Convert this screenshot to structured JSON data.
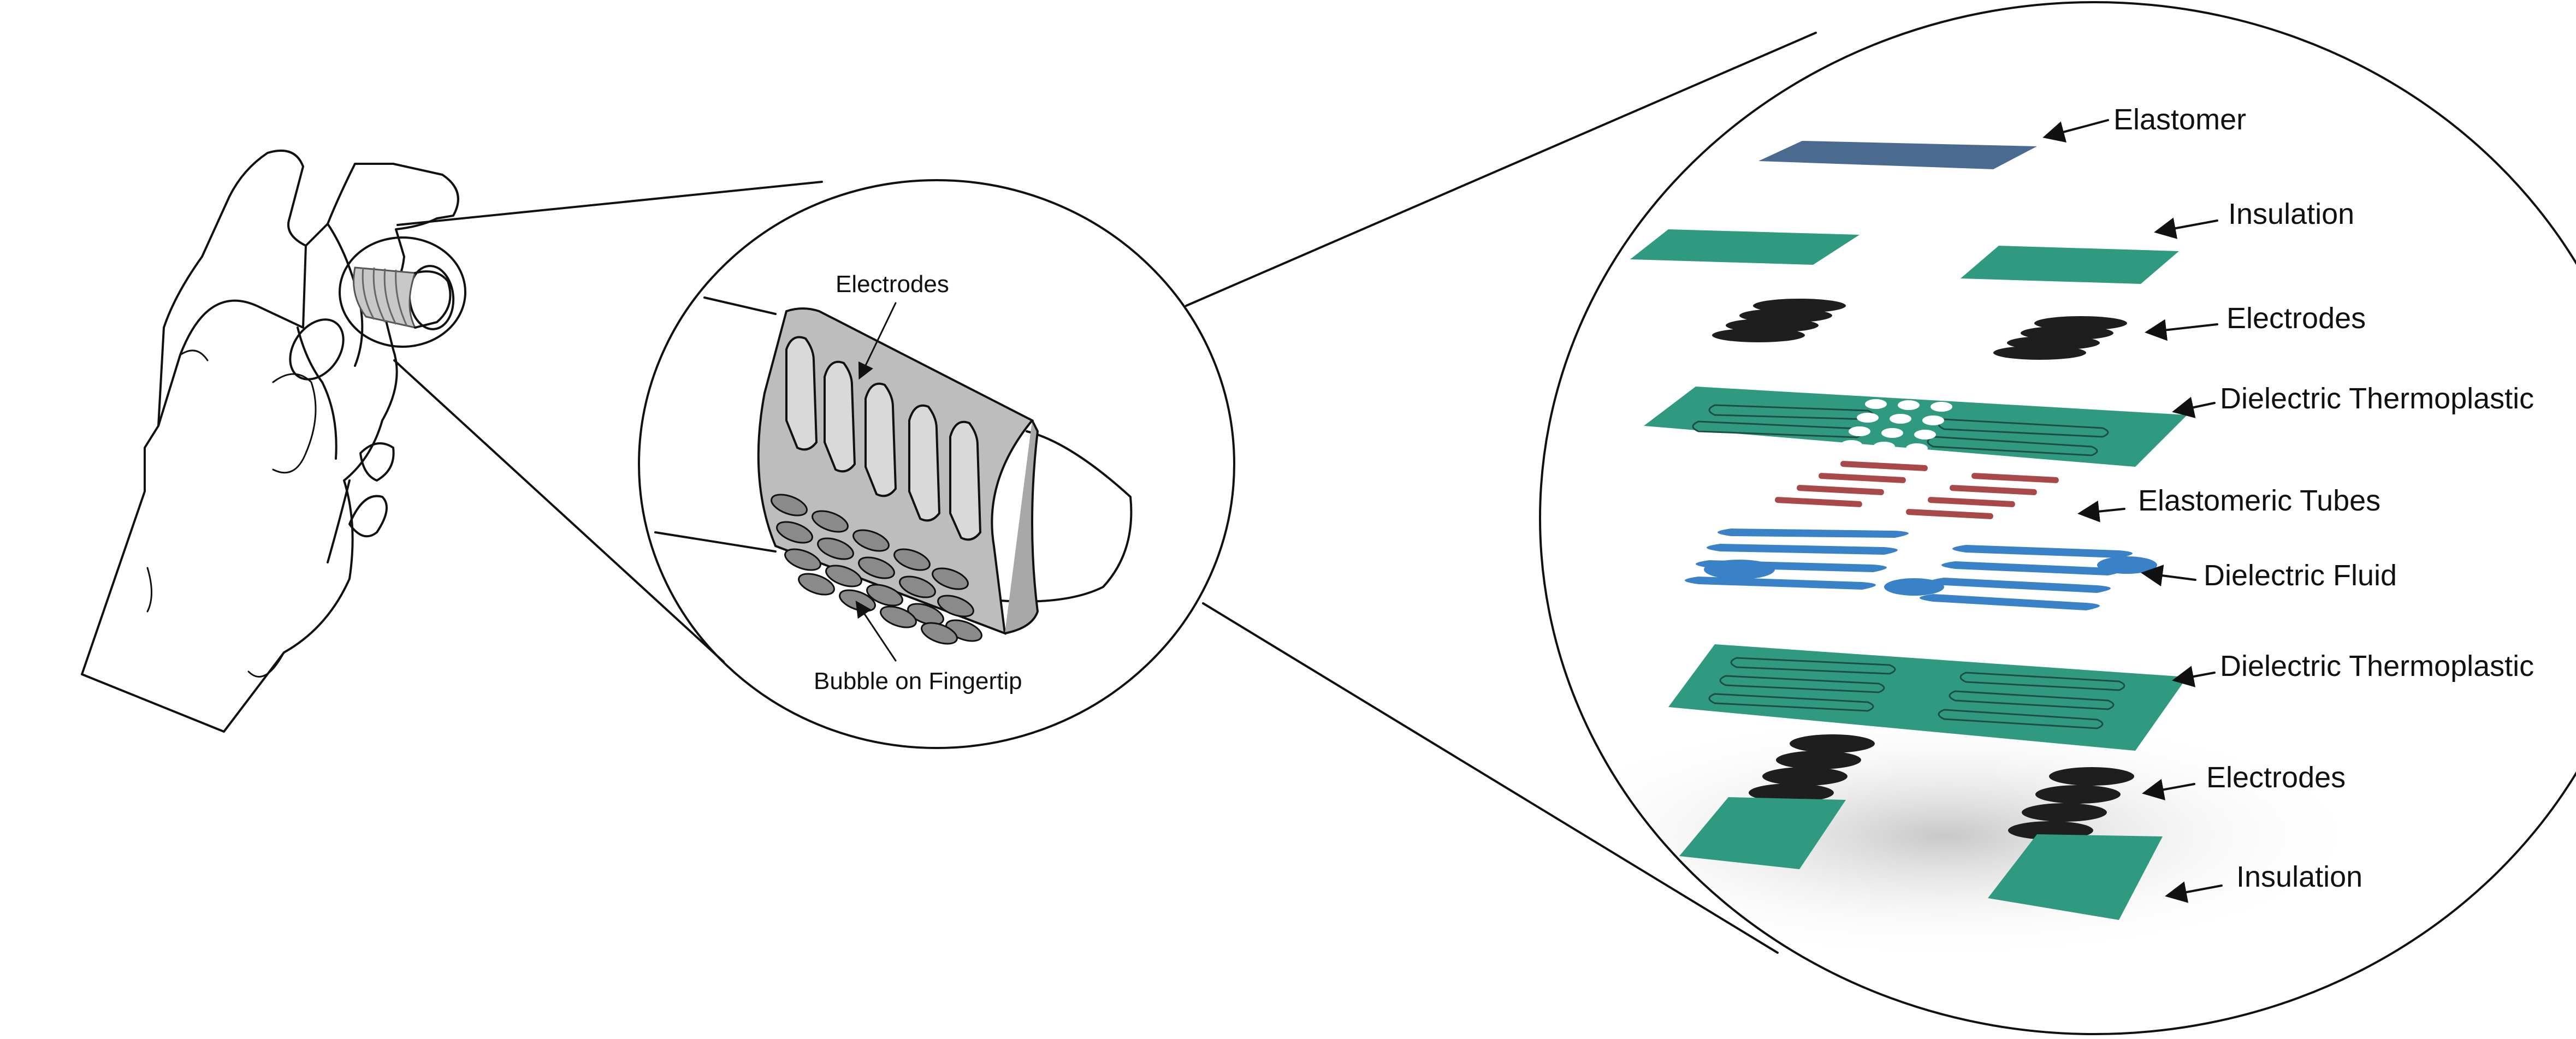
{
  "mid_inset": {
    "labels": {
      "electrodes": "Electrodes",
      "bubble": "Bubble on Fingertip"
    }
  },
  "exploded_view": {
    "layers": [
      {
        "label": "Elastomer",
        "color": "#4a6a90"
      },
      {
        "label": "Insulation",
        "color": "#2f9a80"
      },
      {
        "label": "Electrodes",
        "color": "#222222"
      },
      {
        "label": "Dielectric Thermoplastic",
        "color": "#2f9a80"
      },
      {
        "label": "Elastomeric Tubes",
        "color": "#a84848"
      },
      {
        "label": "Dielectric Fluid",
        "color": "#3a82c8"
      },
      {
        "label": "Dielectric Thermoplastic",
        "color": "#2f9a80"
      },
      {
        "label": "Electrodes",
        "color": "#222222"
      },
      {
        "label": "Insulation",
        "color": "#2f9a80"
      }
    ]
  }
}
